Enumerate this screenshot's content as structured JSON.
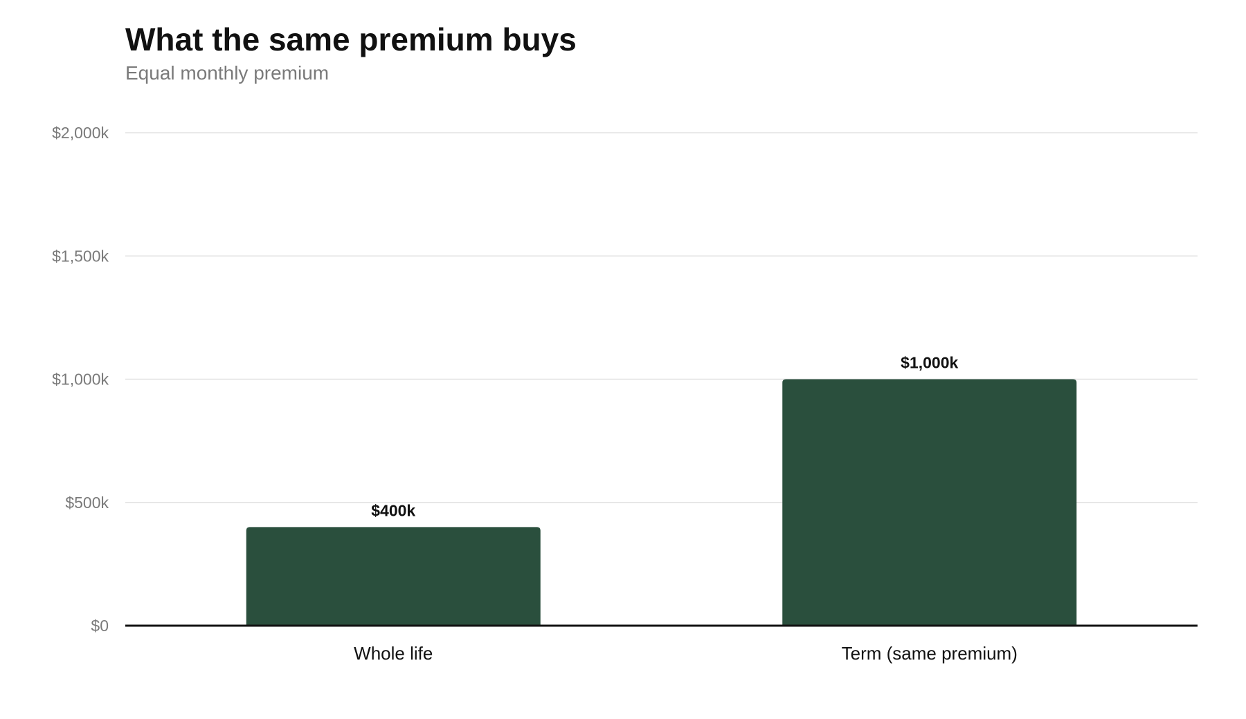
{
  "chart_data": {
    "type": "bar",
    "title": "What the same premium buys",
    "subtitle": "Equal monthly premium",
    "xlabel": "",
    "ylabel": "",
    "categories": [
      "Whole life",
      "Term (same premium)"
    ],
    "values": [
      400,
      1000
    ],
    "data_labels": [
      "$400k",
      "$1,000k"
    ],
    "ylim": [
      0,
      2000
    ],
    "yticks": [
      0,
      500,
      1000,
      1500,
      2000
    ],
    "ytick_labels": [
      "$0",
      "$500k",
      "$1,000k",
      "$1,500k",
      "$2,000k"
    ],
    "grid": true,
    "legend": "none",
    "bar_color": "#2a4f3d"
  }
}
